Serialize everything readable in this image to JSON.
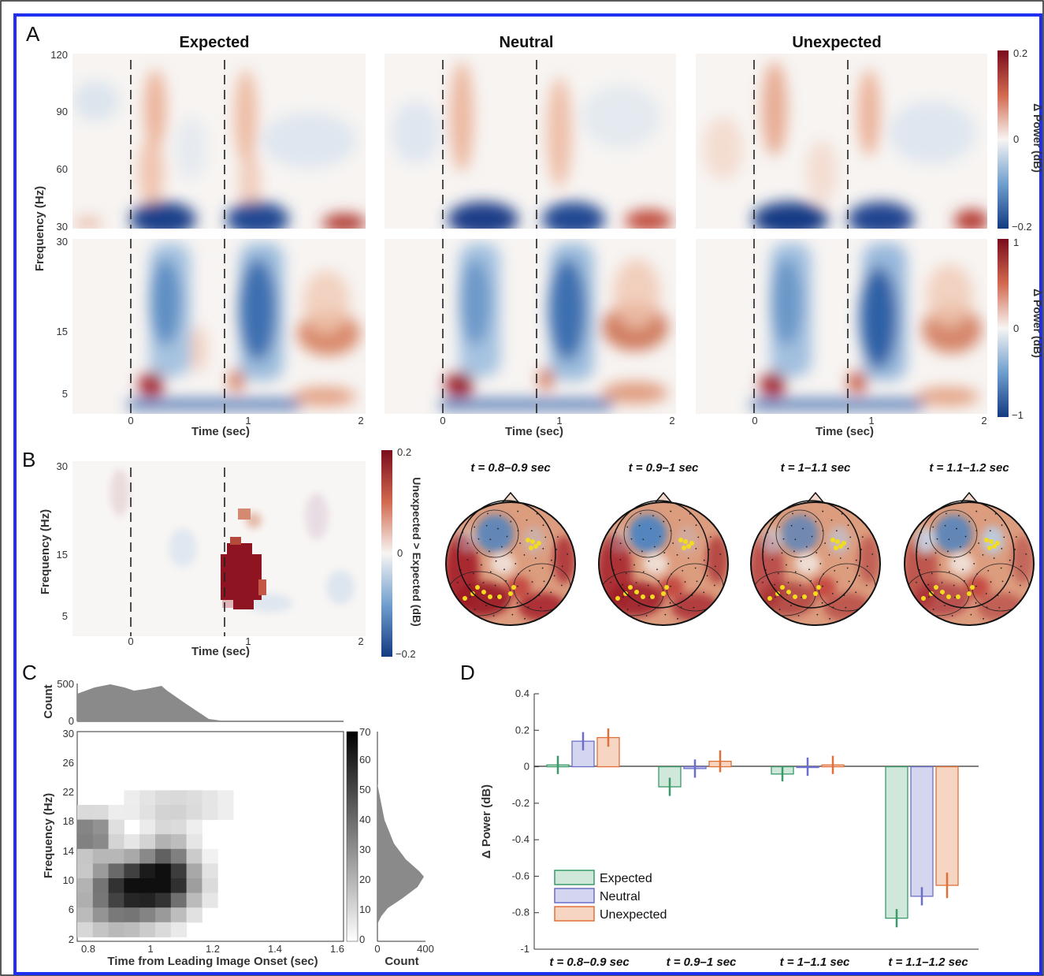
{
  "panel_labels": [
    "A",
    "B",
    "C",
    "D"
  ],
  "panelA": {
    "titles": [
      "Expected",
      "Neutral",
      "Unexpected"
    ],
    "y_high_ticks": [
      "120",
      "90",
      "60",
      "30"
    ],
    "y_low_ticks": [
      "30",
      "15",
      "5"
    ],
    "x_ticks": [
      "0",
      "1",
      "2"
    ],
    "xlabel": "Time (sec)",
    "ylabel": "Frequency (Hz)",
    "cbar_high": {
      "label": "Δ Power (dB)",
      "ticks": [
        "0.2",
        "0",
        "−0.2"
      ]
    },
    "cbar_low": {
      "label": "Δ Power (dB)",
      "ticks": [
        "1",
        "0",
        "−1"
      ]
    }
  },
  "panelB": {
    "y_ticks": [
      "30",
      "15",
      "5"
    ],
    "x_ticks": [
      "0",
      "1",
      "2"
    ],
    "xlabel": "Time (sec)",
    "ylabel": "Frequency (Hz)",
    "cbar": {
      "label": "Unexpected > Expected (dB)",
      "ticks": [
        "0.2",
        "0",
        "−0.2"
      ]
    },
    "topo_titles": [
      "t = 0.8–0.9 sec",
      "t = 0.9–1 sec",
      "t = 1–1.1 sec",
      "t = 1.1–1.2 sec"
    ]
  },
  "panelC": {
    "top_ylabel": "Count",
    "top_yticks": [
      "500",
      "0"
    ],
    "y_ticks": [
      "30",
      "26",
      "22",
      "18",
      "14",
      "10",
      "6",
      "2"
    ],
    "x_ticks": [
      "0.8",
      "1",
      "1.2",
      "1.4",
      "1.6"
    ],
    "xlabel": "Time from Leading Image Onset (sec)",
    "ylabel": "Frequency (Hz)",
    "cbar_ticks": [
      "70",
      "60",
      "50",
      "40",
      "30",
      "20",
      "10",
      "0"
    ],
    "side_xticks": [
      "0",
      "400"
    ],
    "side_xlabel": "Count"
  },
  "chart_data": {
    "type": "bar",
    "categories": [
      "t = 0.8–0.9 sec",
      "t = 0.9–1 sec",
      "t = 1–1.1 sec",
      "t = 1.1–1.2 sec"
    ],
    "ylabel": "Δ Power (dB)",
    "ylim": [
      -1,
      0.4
    ],
    "y_ticks": [
      "0.4",
      "0.2",
      "0",
      "-0.2",
      "-0.4",
      "-0.6",
      "-0.8",
      "-1"
    ],
    "legend_position": "bottom-left",
    "series": [
      {
        "name": "Expected",
        "values": [
          0.01,
          -0.11,
          -0.04,
          -0.83
        ],
        "errors": [
          0.05,
          0.05,
          0.04,
          0.05
        ],
        "color": "#3a9a6a",
        "fill": "#cfe8da"
      },
      {
        "name": "Neutral",
        "values": [
          0.14,
          -0.01,
          0.0,
          -0.71
        ],
        "errors": [
          0.05,
          0.05,
          0.05,
          0.05
        ],
        "color": "#6b6fc9",
        "fill": "#d4d5ef"
      },
      {
        "name": "Unexpected",
        "values": [
          0.16,
          0.03,
          0.01,
          -0.65
        ],
        "errors": [
          0.05,
          0.06,
          0.05,
          0.07
        ],
        "color": "#e0703a",
        "fill": "#f6d5c2"
      }
    ]
  },
  "colors": {
    "border": "#1e2ff0",
    "red": "#9c1424",
    "blue": "#1c3f8f"
  }
}
